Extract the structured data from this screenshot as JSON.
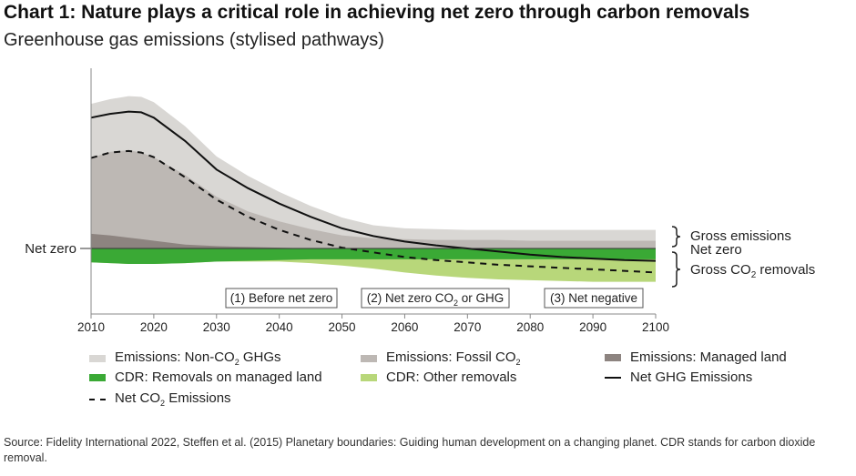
{
  "title": "Chart 1: Nature plays a critical role in achieving net zero through carbon removals",
  "subtitle": "Greenhouse gas emissions (stylised pathways)",
  "source": "Source: Fidelity International 2022, Steffen et al. (2015) Planetary boundaries: Guiding human development on a changing planet. CDR stands for carbon dioxide removal.",
  "chart_data": {
    "type": "area",
    "xlim": [
      2010,
      2100
    ],
    "x_ticks": [
      "2010",
      "2020",
      "2030",
      "2040",
      "2050",
      "2060",
      "2070",
      "2080",
      "2090",
      "2100"
    ],
    "x": [
      2010,
      2013,
      2016,
      2018,
      2020,
      2025,
      2030,
      2035,
      2040,
      2045,
      2050,
      2055,
      2060,
      2065,
      2070,
      2075,
      2080,
      2085,
      2090,
      2095,
      2100
    ],
    "zero_label": "Net zero",
    "series": [
      {
        "name": "Emissions: Non-CO2 GHGs",
        "color": "#d9d7d4",
        "values": [
          187,
          193,
          197,
          196,
          189,
          158,
          119,
          94,
          73,
          55,
          40,
          30,
          26,
          25,
          24,
          24,
          24,
          24,
          24,
          24,
          24
        ]
      },
      {
        "name": "Emissions: Fossil CO2",
        "color": "#bdb8b4",
        "values": [
          117,
          125,
          127,
          124,
          118,
          95,
          67,
          48,
          35,
          25,
          17,
          13,
          12,
          11,
          11,
          11,
          10,
          10,
          10,
          10,
          10
        ]
      },
      {
        "name": "Emissions: Managed land",
        "color": "#8d8480",
        "values": [
          19,
          17,
          14,
          12,
          10,
          5,
          3,
          2,
          1,
          0,
          0,
          0,
          0,
          0,
          0,
          0,
          0,
          0,
          0,
          0,
          0
        ]
      },
      {
        "name": "CDR: Removals on managed land",
        "color": "#3aa935",
        "values": [
          -18,
          -19,
          -20,
          -20,
          -20,
          -19,
          -17,
          -16,
          -15,
          -14,
          -14,
          -14,
          -14,
          -14,
          -14,
          -14,
          -14,
          -14,
          -14,
          -14,
          -14
        ]
      },
      {
        "name": "CDR: Other removals",
        "color": "#b8d77a",
        "values": [
          -18,
          -19,
          -20,
          -20,
          -20,
          -19,
          -17,
          -17,
          -17,
          -19,
          -22,
          -26,
          -31,
          -35,
          -38,
          -40,
          -41,
          -42,
          -43,
          -43,
          -43
        ]
      },
      {
        "name": "Net GHG Emissions",
        "color": "#111111",
        "style": "solid",
        "values": [
          169,
          174,
          177,
          176,
          169,
          139,
          102,
          78,
          58,
          41,
          26,
          16,
          9,
          4,
          0,
          -4,
          -8,
          -11,
          -13,
          -15,
          -16
        ]
      },
      {
        "name": "Net CO2 Emissions",
        "color": "#111111",
        "style": "dashed",
        "values": [
          117,
          124,
          126,
          124,
          118,
          92,
          63,
          41,
          24,
          11,
          1,
          -5,
          -11,
          -15,
          -18,
          -21,
          -23,
          -25,
          -27,
          -29,
          -31
        ]
      }
    ],
    "stage_labels": [
      "(1) Before net zero",
      "(2) Net zero CO",
      "(3) Net negative"
    ],
    "stage_label_2_sub": "2",
    "stage_label_2_suffix": " or GHG",
    "brace_labels": {
      "gross_emissions": "Gross emissions",
      "net_zero": "Net zero",
      "gross_removals_prefix": "Gross CO",
      "gross_removals_sub": "2",
      "gross_removals_suffix": " removals"
    },
    "legend": {
      "non_co2_prefix": "Emissions: Non-CO",
      "non_co2_sub": "2",
      "non_co2_suffix": " GHGs",
      "fossil_prefix": "Emissions: Fossil CO",
      "fossil_sub": "2",
      "managed_land": "Emissions: Managed land",
      "cdr_managed": "CDR: Removals on managed land",
      "cdr_other": "CDR: Other removals",
      "net_ghg": "Net GHG Emissions",
      "net_co2_prefix": "Net CO",
      "net_co2_sub": "2",
      "net_co2_suffix": " Emissions"
    }
  }
}
